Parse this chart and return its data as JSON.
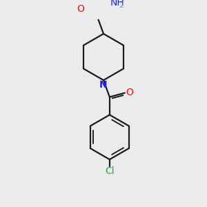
{
  "bg_color": "#ebebed",
  "bond_color": "#1a1a1a",
  "bond_width": 1.6,
  "atom_colors": {
    "O": "#ee1100",
    "N": "#2222ee",
    "Cl": "#22aa22",
    "H": "#5aaa9a"
  },
  "figsize": [
    3.0,
    3.0
  ],
  "dpi": 100
}
